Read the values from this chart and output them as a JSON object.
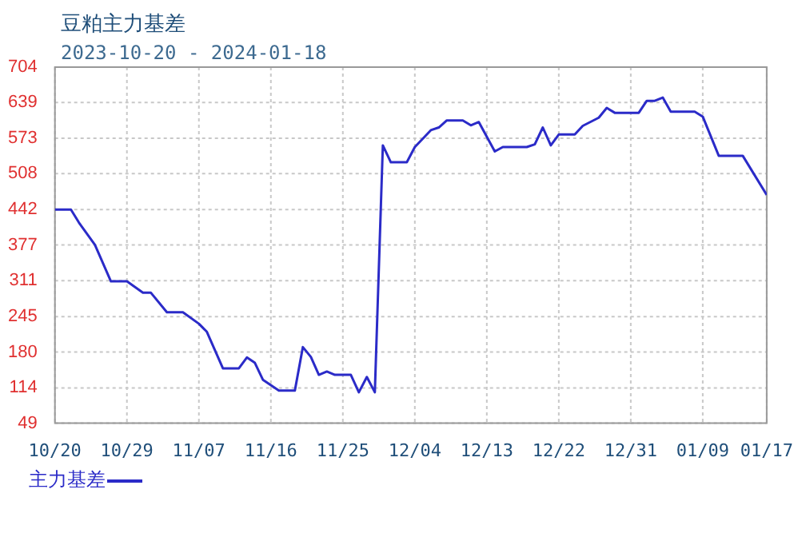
{
  "chart_data": {
    "type": "line",
    "title": "豆粕主力基差",
    "subtitle": "2023-10-20 - 2024-01-18",
    "x": [
      "2023-10-20",
      "2023-10-22",
      "2023-10-23",
      "2023-10-25",
      "2023-10-27",
      "2023-10-29",
      "2023-10-31",
      "2023-11-01",
      "2023-11-03",
      "2023-11-05",
      "2023-11-07",
      "2023-11-08",
      "2023-11-10",
      "2023-11-12",
      "2023-11-13",
      "2023-11-14",
      "2023-11-15",
      "2023-11-17",
      "2023-11-19",
      "2023-11-20",
      "2023-11-21",
      "2023-11-22",
      "2023-11-23",
      "2023-11-24",
      "2023-11-26",
      "2023-11-27",
      "2023-11-28",
      "2023-11-29",
      "2023-11-30",
      "2023-12-01",
      "2023-12-03",
      "2023-12-04",
      "2023-12-06",
      "2023-12-07",
      "2023-12-08",
      "2023-12-10",
      "2023-12-11",
      "2023-12-12",
      "2023-12-14",
      "2023-12-15",
      "2023-12-18",
      "2023-12-19",
      "2023-12-20",
      "2023-12-21",
      "2023-12-22",
      "2023-12-24",
      "2023-12-25",
      "2023-12-27",
      "2023-12-28",
      "2023-12-29",
      "2024-01-01",
      "2024-01-02",
      "2024-01-03",
      "2024-01-04",
      "2024-01-05",
      "2024-01-08",
      "2024-01-09",
      "2024-01-11",
      "2024-01-14",
      "2024-01-17"
    ],
    "series": [
      {
        "name": "主力基差",
        "color": "#2b2bc8",
        "values": [
          442,
          442,
          418,
          377,
          310,
          310,
          289,
          289,
          253,
          253,
          232,
          217,
          150,
          150,
          170,
          160,
          129,
          109,
          109,
          189,
          171,
          138,
          144,
          138,
          138,
          106,
          134,
          106,
          560,
          529,
          529,
          557,
          588,
          593,
          606,
          606,
          597,
          603,
          549,
          557,
          557,
          562,
          593,
          560,
          580,
          580,
          596,
          611,
          629,
          620,
          620,
          642,
          642,
          648,
          622,
          622,
          613,
          541,
          541,
          469
        ]
      }
    ],
    "xlim": [
      "2023-10-20",
      "2024-01-17"
    ],
    "xticks": [
      {
        "value": "2023-10-20",
        "label": "10/20"
      },
      {
        "value": "2023-10-29",
        "label": "10/29"
      },
      {
        "value": "2023-11-07",
        "label": "11/07"
      },
      {
        "value": "2023-11-16",
        "label": "11/16"
      },
      {
        "value": "2023-11-25",
        "label": "11/25"
      },
      {
        "value": "2023-12-04",
        "label": "12/04"
      },
      {
        "value": "2023-12-13",
        "label": "12/13"
      },
      {
        "value": "2023-12-22",
        "label": "12/22"
      },
      {
        "value": "2023-12-31",
        "label": "12/31"
      },
      {
        "value": "2024-01-09",
        "label": "01/09"
      },
      {
        "value": "2024-01-17",
        "label": "01/17"
      }
    ],
    "ylim": [
      49,
      704
    ],
    "yticks": [
      49,
      114,
      180,
      245,
      311,
      377,
      442,
      508,
      573,
      639,
      704
    ],
    "grid": true,
    "legend": "bottom left",
    "marker": "none",
    "line_style": "solid"
  }
}
